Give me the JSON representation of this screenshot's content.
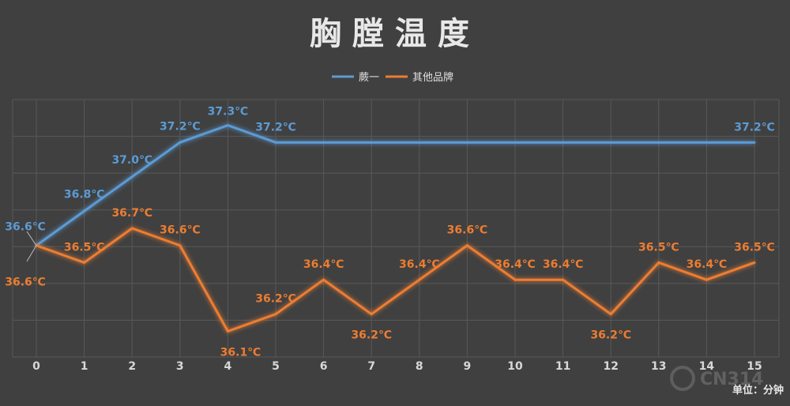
{
  "chart_data": {
    "type": "line",
    "title": "胸膛温度",
    "x": [
      "0",
      "1",
      "2",
      "3",
      "4",
      "5",
      "6",
      "7",
      "8",
      "9",
      "10",
      "11",
      "12",
      "13",
      "14",
      "15"
    ],
    "series": [
      {
        "name": "蕨一",
        "color": "#5b9bd5",
        "values": [
          36.6,
          36.8,
          37.0,
          37.2,
          37.3,
          37.2,
          37.2,
          37.2,
          37.2,
          37.2,
          37.2,
          37.2,
          37.2,
          37.2,
          37.2,
          37.2
        ],
        "labels": [
          "36.6℃",
          "36.8℃",
          "37.0℃",
          "37.2℃",
          "37.3℃",
          "37.2℃",
          null,
          null,
          null,
          null,
          null,
          null,
          null,
          null,
          null,
          "37.2℃"
        ]
      },
      {
        "name": "其他品牌",
        "color": "#ed7d31",
        "values": [
          36.6,
          36.5,
          36.7,
          36.6,
          36.1,
          36.2,
          36.4,
          36.2,
          36.4,
          36.6,
          36.4,
          36.4,
          36.2,
          36.5,
          36.4,
          36.5
        ],
        "labels": [
          "36.6℃",
          "36.5℃",
          "36.7℃",
          "36.6℃",
          "36.1℃",
          "36.2℃",
          "36.4℃",
          "36.2℃",
          "36.4℃",
          "36.6℃",
          "36.4℃",
          "36.4℃",
          "36.2℃",
          "36.5℃",
          "36.4℃",
          "36.5℃"
        ]
      }
    ],
    "ylim": [
      35.95,
      37.45
    ],
    "grid": true,
    "legend": "top-center",
    "unit_note": "单位：分钟",
    "xlabel": "",
    "ylabel": ""
  },
  "watermark": "CN314",
  "colors": {
    "background": "#404040",
    "grid": "#595959"
  }
}
